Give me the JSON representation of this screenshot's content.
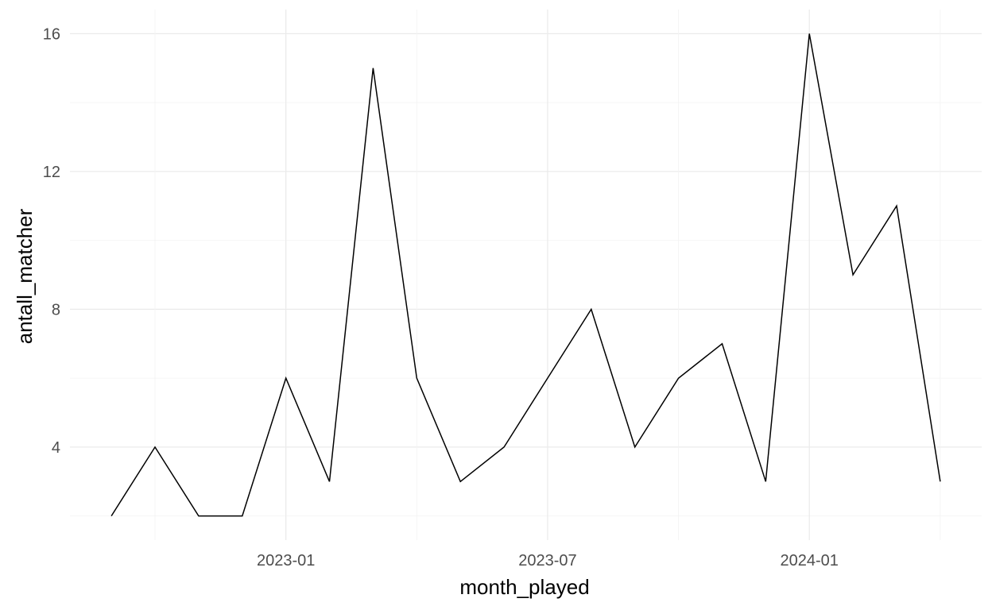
{
  "chart_data": {
    "type": "line",
    "xlabel": "month_played",
    "ylabel": "antall_matcher",
    "x_tick_labels": [
      "2023-01",
      "2023-07",
      "2024-01"
    ],
    "y_tick_labels": [
      "4",
      "8",
      "12",
      "16"
    ],
    "ylim": [
      1.3,
      16.7
    ],
    "grid": true,
    "legend": "none",
    "line_color": "#000000",
    "x": [
      "2022-09",
      "2022-10",
      "2022-11",
      "2022-12",
      "2023-01",
      "2023-02",
      "2023-03",
      "2023-04",
      "2023-05",
      "2023-06",
      "2023-07",
      "2023-08",
      "2023-09",
      "2023-10",
      "2023-11",
      "2023-12",
      "2024-01",
      "2024-02",
      "2024-03",
      "2024-04"
    ],
    "series": [
      {
        "values": [
          2,
          4,
          2,
          2,
          6,
          3,
          15,
          6,
          3,
          4,
          6,
          8,
          4,
          6,
          7,
          3,
          16,
          9,
          11,
          3
        ]
      }
    ]
  }
}
